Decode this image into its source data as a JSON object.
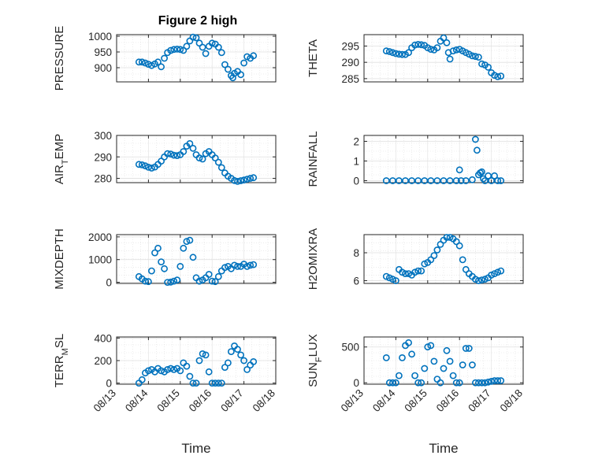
{
  "title": "Figure 2 high",
  "chart_data": [
    {
      "type": "scatter",
      "panel": "left-1",
      "ylabel": "PRESSURE",
      "ylim": [
        855,
        1005
      ],
      "yticks": [
        900,
        950,
        1000
      ],
      "xlim": [
        0,
        5
      ],
      "grid": true,
      "x": [
        0.7,
        0.8,
        0.9,
        1.0,
        1.1,
        1.2,
        1.3,
        1.4,
        1.5,
        1.6,
        1.7,
        1.8,
        1.9,
        2.0,
        2.1,
        2.2,
        2.3,
        2.4,
        2.5,
        2.6,
        2.7,
        2.8,
        2.9,
        3.0,
        3.1,
        3.2,
        3.3,
        3.4,
        3.5,
        3.6,
        3.65,
        3.7,
        3.8,
        3.9,
        4.0,
        4.1,
        4.2,
        4.3
      ],
      "y": [
        918,
        918,
        915,
        911,
        907,
        912,
        918,
        903,
        930,
        948,
        955,
        958,
        959,
        958,
        955,
        968,
        985,
        997,
        995,
        978,
        965,
        945,
        968,
        978,
        975,
        965,
        948,
        910,
        895,
        875,
        868,
        882,
        888,
        878,
        915,
        935,
        930,
        938
      ]
    },
    {
      "type": "scatter",
      "panel": "right-1",
      "ylabel": "THETA",
      "ylim": [
        284,
        298.5
      ],
      "yticks": [
        285,
        290,
        295
      ],
      "xlim": [
        0,
        5
      ],
      "grid": true,
      "x": [
        0.7,
        0.8,
        0.9,
        1.0,
        1.1,
        1.2,
        1.3,
        1.4,
        1.5,
        1.6,
        1.7,
        1.8,
        1.9,
        2.0,
        2.1,
        2.2,
        2.3,
        2.4,
        2.5,
        2.6,
        2.65,
        2.7,
        2.8,
        2.9,
        3.0,
        3.1,
        3.2,
        3.3,
        3.4,
        3.5,
        3.6,
        3.7,
        3.8,
        3.9,
        4.0,
        4.1,
        4.2,
        4.3
      ],
      "y": [
        293.5,
        293.3,
        293.0,
        292.7,
        292.5,
        292.4,
        292.4,
        293.0,
        294.5,
        295.3,
        295.5,
        295.4,
        295.2,
        294.5,
        294.0,
        293.8,
        294.5,
        296.5,
        297.5,
        296.0,
        293.0,
        291.0,
        293.5,
        293.8,
        294.0,
        293.5,
        293.0,
        292.5,
        292.0,
        291.8,
        291.6,
        289.5,
        289.2,
        288.5,
        286.8,
        286.0,
        285.6,
        285.8
      ]
    },
    {
      "type": "scatter",
      "panel": "left-2",
      "ylabel": "AIR_TEMP",
      "ylim": [
        278,
        300
      ],
      "yticks": [
        280,
        290,
        300
      ],
      "xlim": [
        0,
        5
      ],
      "grid": true,
      "x": [
        0.7,
        0.8,
        0.9,
        1.0,
        1.1,
        1.2,
        1.3,
        1.4,
        1.5,
        1.6,
        1.7,
        1.8,
        1.9,
        2.0,
        2.1,
        2.2,
        2.3,
        2.4,
        2.5,
        2.6,
        2.7,
        2.8,
        2.9,
        3.0,
        3.1,
        3.2,
        3.3,
        3.4,
        3.5,
        3.6,
        3.7,
        3.8,
        3.9,
        4.0,
        4.1,
        4.2,
        4.3
      ],
      "y": [
        286.5,
        286.3,
        285.8,
        285.2,
        284.8,
        285.3,
        286.5,
        288.0,
        290.0,
        291.5,
        291.3,
        290.8,
        290.6,
        291.0,
        292.5,
        295.0,
        296.2,
        294.0,
        291.0,
        289.5,
        289.0,
        291.5,
        292.5,
        291.0,
        289.5,
        287.5,
        285.0,
        282.5,
        281.0,
        280.0,
        279.0,
        278.6,
        278.9,
        279.2,
        279.6,
        280.0,
        280.3
      ]
    },
    {
      "type": "scatter",
      "panel": "right-2",
      "ylabel": "RAINFALL",
      "ylim": [
        -0.1,
        2.3
      ],
      "yticks": [
        0,
        1,
        2
      ],
      "xlim": [
        0,
        5
      ],
      "grid": true,
      "x": [
        0.7,
        0.9,
        1.1,
        1.3,
        1.5,
        1.7,
        1.9,
        2.1,
        2.3,
        2.5,
        2.7,
        2.9,
        3.0,
        3.05,
        3.2,
        3.4,
        3.5,
        3.55,
        3.6,
        3.65,
        3.7,
        3.75,
        3.8,
        3.9,
        4.0,
        4.1,
        4.2,
        4.3
      ],
      "y": [
        0,
        0,
        0,
        0,
        0,
        0,
        0,
        0,
        0,
        0,
        0,
        0,
        0.55,
        0,
        0,
        0.05,
        2.1,
        1.55,
        0.3,
        0.4,
        0.45,
        0.1,
        0,
        0.25,
        0,
        0.25,
        0,
        0
      ]
    },
    {
      "type": "scatter",
      "panel": "left-3",
      "ylabel": "MIXDEPTH",
      "ylim": [
        -50,
        2100
      ],
      "yticks": [
        0,
        1000,
        2000
      ],
      "xlim": [
        0,
        5
      ],
      "grid": true,
      "x": [
        0.7,
        0.8,
        0.9,
        1.0,
        1.1,
        1.2,
        1.3,
        1.4,
        1.5,
        1.6,
        1.7,
        1.8,
        1.9,
        2.0,
        2.1,
        2.2,
        2.3,
        2.4,
        2.5,
        2.6,
        2.7,
        2.8,
        2.9,
        3.0,
        3.1,
        3.2,
        3.3,
        3.4,
        3.5,
        3.6,
        3.7,
        3.8,
        3.9,
        4.0,
        4.1,
        4.2,
        4.3
      ],
      "y": [
        250,
        150,
        50,
        30,
        500,
        1300,
        1500,
        900,
        600,
        0,
        10,
        50,
        100,
        700,
        1500,
        1800,
        1850,
        1100,
        200,
        50,
        100,
        200,
        350,
        50,
        30,
        250,
        500,
        650,
        700,
        600,
        750,
        700,
        700,
        800,
        700,
        750,
        780
      ]
    },
    {
      "type": "scatter",
      "panel": "right-3",
      "ylabel": "H2OMIXRA",
      "ylim": [
        5.8,
        9.3
      ],
      "yticks": [
        6,
        8
      ],
      "xlim": [
        0,
        5
      ],
      "grid": true,
      "x": [
        0.7,
        0.8,
        0.9,
        1.0,
        1.1,
        1.2,
        1.3,
        1.4,
        1.5,
        1.6,
        1.7,
        1.8,
        1.9,
        2.0,
        2.1,
        2.2,
        2.3,
        2.4,
        2.5,
        2.6,
        2.7,
        2.8,
        2.9,
        3.0,
        3.1,
        3.2,
        3.3,
        3.4,
        3.5,
        3.6,
        3.7,
        3.8,
        3.9,
        4.0,
        4.1,
        4.2,
        4.3
      ],
      "y": [
        6.3,
        6.2,
        6.1,
        6.0,
        6.8,
        6.6,
        6.5,
        6.5,
        6.4,
        6.6,
        6.7,
        6.7,
        7.2,
        7.3,
        7.5,
        7.8,
        8.2,
        8.6,
        8.9,
        9.1,
        9.1,
        9.0,
        8.8,
        8.5,
        7.5,
        6.8,
        6.5,
        6.3,
        6.1,
        6.0,
        6.05,
        6.1,
        6.2,
        6.4,
        6.5,
        6.6,
        6.7
      ]
    },
    {
      "type": "scatter",
      "panel": "left-4",
      "ylabel": "TERR_MSL",
      "ylim": [
        -10,
        410
      ],
      "yticks": [
        0,
        200,
        400
      ],
      "xlim": [
        0,
        5
      ],
      "grid": true,
      "x": [
        0.7,
        0.8,
        0.9,
        1.0,
        1.1,
        1.2,
        1.3,
        1.4,
        1.5,
        1.6,
        1.7,
        1.8,
        1.9,
        2.0,
        2.1,
        2.2,
        2.3,
        2.4,
        2.5,
        2.6,
        2.7,
        2.8,
        2.9,
        3.0,
        3.1,
        3.2,
        3.3,
        3.4,
        3.5,
        3.6,
        3.7,
        3.8,
        3.9,
        4.0,
        4.1,
        4.2,
        4.3
      ],
      "y": [
        0,
        30,
        90,
        110,
        120,
        100,
        130,
        110,
        100,
        120,
        130,
        120,
        130,
        110,
        180,
        150,
        60,
        0,
        0,
        200,
        260,
        250,
        100,
        0,
        0,
        0,
        0,
        140,
        180,
        280,
        330,
        300,
        250,
        200,
        120,
        160,
        190
      ]
    },
    {
      "type": "scatter",
      "panel": "right-4",
      "ylabel": "SUN_FLUX",
      "ylim": [
        -20,
        640
      ],
      "yticks": [
        0,
        500
      ],
      "xlim": [
        0,
        5
      ],
      "grid": true,
      "x": [
        0.7,
        0.8,
        0.9,
        1.0,
        1.1,
        1.2,
        1.3,
        1.4,
        1.5,
        1.6,
        1.7,
        1.8,
        1.9,
        2.0,
        2.1,
        2.2,
        2.3,
        2.4,
        2.5,
        2.6,
        2.7,
        2.8,
        2.9,
        3.0,
        3.1,
        3.2,
        3.3,
        3.4,
        3.5,
        3.6,
        3.7,
        3.8,
        3.9,
        4.0,
        4.1,
        4.2,
        4.3
      ],
      "y": [
        350,
        0,
        0,
        0,
        100,
        350,
        520,
        560,
        400,
        100,
        0,
        0,
        200,
        500,
        520,
        300,
        50,
        0,
        200,
        450,
        300,
        100,
        0,
        0,
        250,
        480,
        480,
        250,
        0,
        0,
        0,
        0,
        10,
        20,
        30,
        30,
        30
      ]
    }
  ],
  "x_tick_labels": [
    "08/13",
    "08/14",
    "08/15",
    "08/16",
    "08/17",
    "08/18"
  ],
  "xlabel": "Time",
  "colors": {
    "marker": "#0072BD",
    "axis": "#262626",
    "grid": "#DFDFDF"
  }
}
